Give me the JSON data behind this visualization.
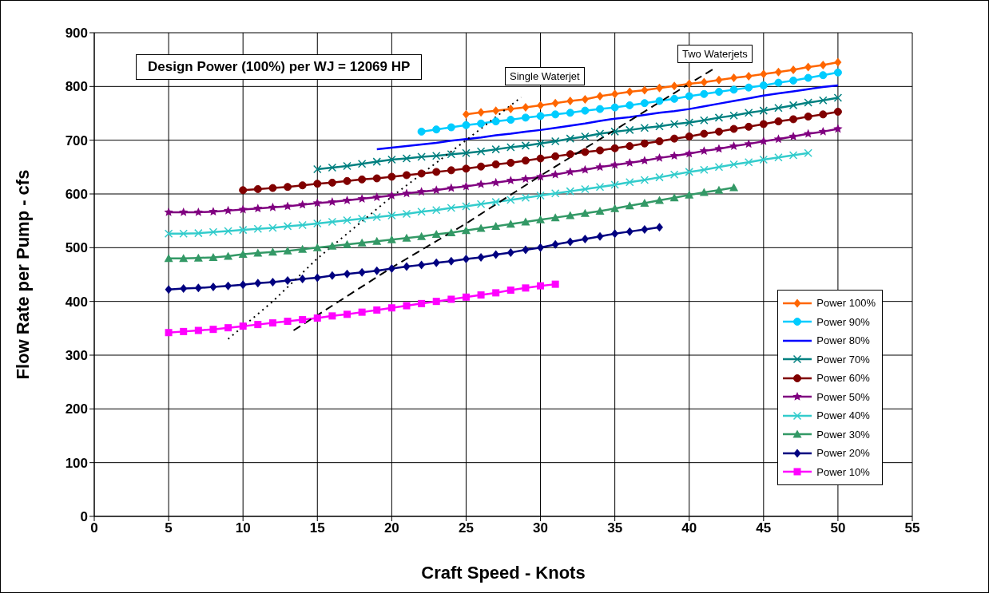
{
  "chart_data": {
    "type": "line",
    "xlabel": "Craft Speed - Knots",
    "ylabel": "Flow Rate per Pump - cfs",
    "x": [
      5,
      6,
      7,
      8,
      9,
      10,
      11,
      12,
      13,
      14,
      15,
      16,
      17,
      18,
      19,
      20,
      21,
      22,
      23,
      24,
      25,
      26,
      27,
      28,
      29,
      30,
      31,
      32,
      33,
      34,
      35,
      36,
      37,
      38,
      39,
      40,
      41,
      42,
      43,
      44,
      45,
      46,
      47,
      48,
      49,
      50
    ],
    "xlim": [
      0,
      55
    ],
    "xticks": [
      0,
      5,
      10,
      15,
      20,
      25,
      30,
      35,
      40,
      45,
      50,
      55
    ],
    "ylim": [
      0,
      900
    ],
    "yticks": [
      0,
      100,
      200,
      300,
      400,
      500,
      600,
      700,
      800,
      900
    ],
    "grid": true,
    "legend": "bottom right",
    "line_style": "solid",
    "annotations": [
      "Design Power (100%) per WJ = 12069 HP",
      "Single Waterjet",
      "Two Waterjets"
    ],
    "series": [
      {
        "name": "Power 100%",
        "color": "#ff6600",
        "marker": "diamond",
        "values": [
          null,
          null,
          null,
          null,
          null,
          null,
          null,
          null,
          null,
          null,
          null,
          null,
          null,
          null,
          null,
          null,
          null,
          null,
          null,
          null,
          748,
          752,
          755,
          758,
          761,
          765,
          769,
          773,
          776,
          782,
          786,
          790,
          793,
          797,
          801,
          805,
          808,
          812,
          816,
          819,
          823,
          827,
          831,
          836,
          840,
          845
        ]
      },
      {
        "name": "Power 90%",
        "color": "#00ccff",
        "marker": "circle",
        "values": [
          null,
          null,
          null,
          null,
          null,
          null,
          null,
          null,
          null,
          null,
          null,
          null,
          null,
          null,
          null,
          null,
          null,
          716,
          720,
          724,
          728,
          731,
          735,
          738,
          742,
          745,
          748,
          751,
          755,
          758,
          761,
          765,
          769,
          773,
          777,
          782,
          786,
          790,
          794,
          798,
          802,
          807,
          811,
          816,
          821,
          826
        ]
      },
      {
        "name": "Power 80%",
        "color": "#0000ff",
        "marker": "none",
        "values": [
          null,
          null,
          null,
          null,
          null,
          null,
          null,
          null,
          null,
          null,
          null,
          null,
          null,
          null,
          683,
          686,
          689,
          692,
          695,
          699,
          702,
          705,
          709,
          712,
          716,
          719,
          723,
          727,
          731,
          736,
          740,
          743,
          747,
          751,
          754,
          758,
          763,
          768,
          773,
          778,
          783,
          787,
          791,
          795,
          799,
          802
        ]
      },
      {
        "name": "Power 70%",
        "color": "#008080",
        "marker": "cross",
        "values": [
          null,
          null,
          null,
          null,
          null,
          null,
          null,
          null,
          null,
          null,
          646,
          649,
          652,
          656,
          660,
          664,
          666,
          669,
          671,
          674,
          676,
          679,
          683,
          687,
          690,
          694,
          698,
          703,
          707,
          712,
          716,
          719,
          723,
          726,
          730,
          733,
          737,
          742,
          746,
          751,
          755,
          760,
          765,
          770,
          774,
          779
        ]
      },
      {
        "name": "Power 60%",
        "color": "#800000",
        "marker": "circle",
        "values": [
          null,
          null,
          null,
          null,
          null,
          607,
          609,
          611,
          613,
          616,
          619,
          621,
          624,
          627,
          629,
          632,
          635,
          638,
          641,
          644,
          647,
          651,
          655,
          658,
          662,
          666,
          670,
          674,
          678,
          681,
          685,
          689,
          694,
          698,
          703,
          707,
          712,
          716,
          721,
          725,
          730,
          735,
          739,
          744,
          748,
          753
        ]
      },
      {
        "name": "Power 50%",
        "color": "#800080",
        "marker": "star",
        "values": [
          566,
          566,
          566,
          567,
          569,
          571,
          573,
          575,
          577,
          580,
          583,
          585,
          588,
          591,
          594,
          597,
          601,
          604,
          607,
          611,
          614,
          618,
          621,
          625,
          628,
          632,
          636,
          641,
          645,
          650,
          654,
          658,
          662,
          667,
          671,
          675,
          680,
          684,
          689,
          693,
          698,
          702,
          707,
          712,
          716,
          721
        ]
      },
      {
        "name": "Power 40%",
        "color": "#33cccc",
        "marker": "cross",
        "values": [
          526,
          526,
          527,
          529,
          531,
          533,
          535,
          537,
          540,
          542,
          545,
          548,
          551,
          554,
          557,
          560,
          563,
          567,
          570,
          574,
          577,
          581,
          585,
          589,
          593,
          597,
          601,
          605,
          609,
          613,
          617,
          622,
          626,
          631,
          636,
          641,
          645,
          650,
          655,
          659,
          664,
          668,
          672,
          676,
          null,
          null
        ]
      },
      {
        "name": "Power 30%",
        "color": "#339966",
        "marker": "triangle",
        "values": [
          480,
          480,
          481,
          482,
          484,
          488,
          490,
          492,
          494,
          497,
          500,
          503,
          506,
          509,
          512,
          515,
          518,
          521,
          525,
          528,
          532,
          536,
          540,
          544,
          548,
          552,
          556,
          560,
          564,
          568,
          573,
          578,
          583,
          588,
          593,
          598,
          603,
          607,
          612,
          null,
          null,
          null,
          null,
          null,
          null,
          null
        ]
      },
      {
        "name": "Power 20%",
        "color": "#000080",
        "marker": "diamond",
        "values": [
          422,
          424,
          425,
          427,
          429,
          431,
          434,
          436,
          439,
          442,
          444,
          448,
          451,
          454,
          457,
          461,
          465,
          468,
          472,
          475,
          479,
          482,
          487,
          491,
          496,
          500,
          506,
          511,
          516,
          521,
          526,
          530,
          534,
          538,
          null,
          null,
          null,
          null,
          null,
          null,
          null,
          null,
          null,
          null,
          null,
          null
        ]
      },
      {
        "name": "Power 10%",
        "color": "#ff00ff",
        "marker": "square",
        "values": [
          342,
          344,
          346,
          348,
          351,
          354,
          357,
          360,
          363,
          366,
          369,
          373,
          376,
          380,
          384,
          388,
          392,
          396,
          400,
          404,
          408,
          412,
          416,
          421,
          425,
          429,
          432,
          null,
          null,
          null,
          null,
          null,
          null,
          null,
          null,
          null,
          null,
          null,
          null,
          null,
          null,
          null,
          null,
          null,
          null,
          null
        ]
      },
      {
        "color": "#000000",
        "marker": "none",
        "line_style": "dotted",
        "x": [
          9,
          12,
          15,
          20,
          25,
          28.7
        ],
        "values": [
          330,
          400,
          480,
          595,
          700,
          780
        ]
      },
      {
        "color": "#000000",
        "marker": "none",
        "line_style": "dashed",
        "x": [
          13.4,
          20,
          25,
          30,
          35,
          40,
          41.6
        ],
        "values": [
          346,
          463,
          545,
          634,
          719,
          805,
          832
        ]
      }
    ]
  }
}
